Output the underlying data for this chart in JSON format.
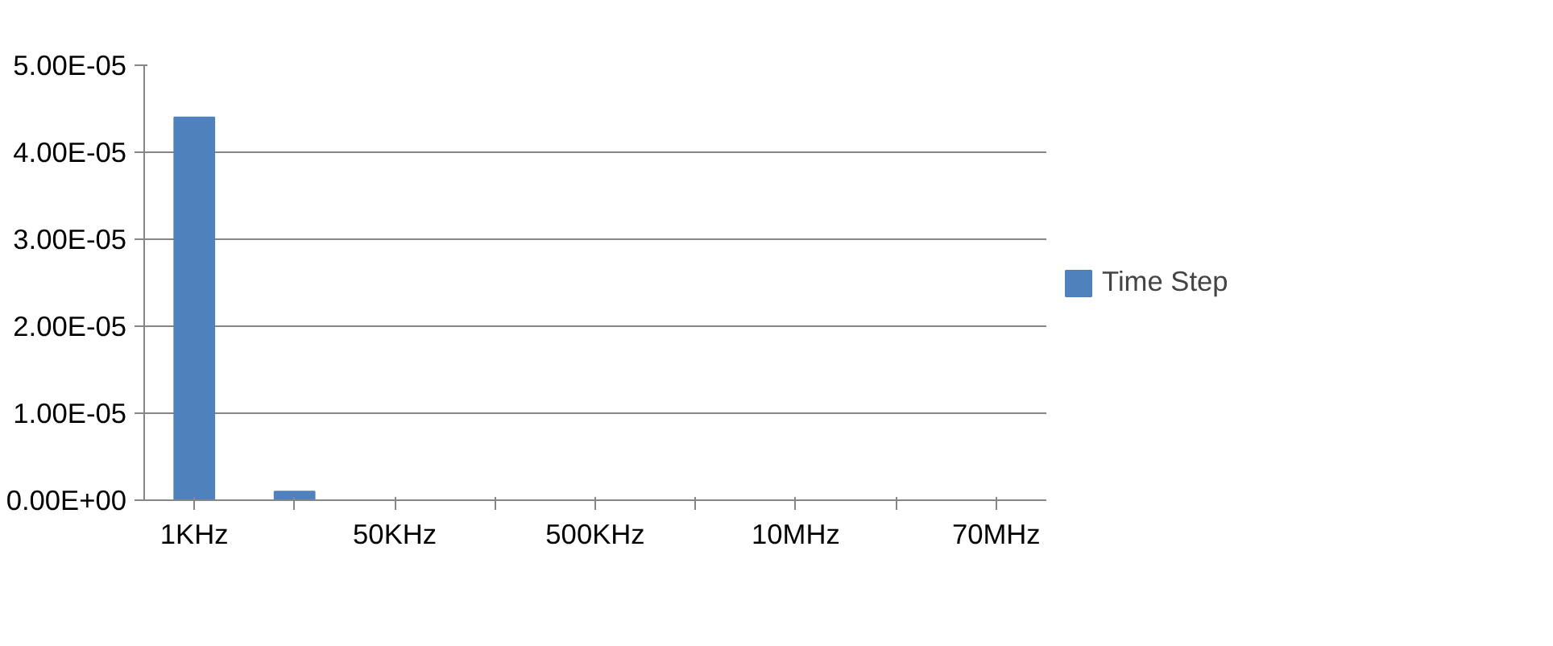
{
  "chart_data": {
    "type": "bar",
    "categories": [
      "1KHz",
      null,
      "50KHz",
      null,
      "500KHz",
      null,
      "10MHz",
      null,
      "70MHz"
    ],
    "series": [
      {
        "name": "Time Step",
        "color": "#4f81bd",
        "values": [
          4.4e-05,
          1e-06,
          0,
          0,
          0,
          0,
          0,
          0,
          0
        ]
      }
    ],
    "ylim": [
      0,
      5e-05
    ],
    "yticks": [
      {
        "value": 0,
        "label": "0.00E+00"
      },
      {
        "value": 1e-05,
        "label": "1.00E-05"
      },
      {
        "value": 2e-05,
        "label": "2.00E-05"
      },
      {
        "value": 3e-05,
        "label": "3.00E-05"
      },
      {
        "value": 4e-05,
        "label": "4.00E-05"
      },
      {
        "value": 5e-05,
        "label": "5.00E-05"
      }
    ],
    "grid": "y",
    "legend": "right"
  }
}
